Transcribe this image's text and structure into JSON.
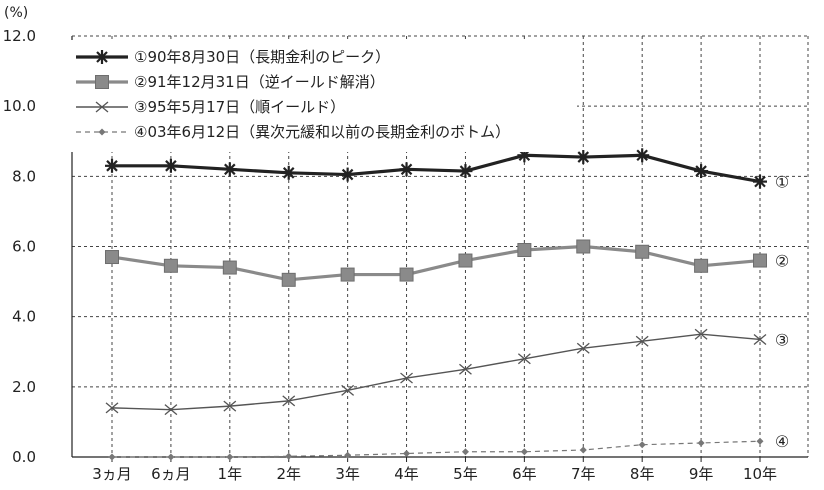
{
  "chart_data": {
    "type": "line",
    "unit_label": "(%)",
    "categories": [
      "3ヵ月",
      "6ヵ月",
      "1年",
      "2年",
      "3年",
      "4年",
      "5年",
      "6年",
      "7年",
      "8年",
      "9年",
      "10年"
    ],
    "ylim": [
      0,
      12
    ],
    "yticks": [
      "0.0",
      "2.0",
      "4.0",
      "6.0",
      "8.0",
      "10.0",
      "12.0"
    ],
    "grid": true,
    "legend_position": "top-left",
    "series": [
      {
        "name": "①90年8月30日（長期金利のピーク）",
        "end_label": "①",
        "color": "#222222",
        "marker": "star",
        "values": [
          8.3,
          8.3,
          8.2,
          8.1,
          8.05,
          8.2,
          8.15,
          8.6,
          8.55,
          8.6,
          8.15,
          7.85
        ]
      },
      {
        "name": "②91年12月31日（逆イールド解消）",
        "end_label": "②",
        "color": "#8a8a8a",
        "marker": "square",
        "values": [
          5.7,
          5.45,
          5.4,
          5.05,
          5.2,
          5.2,
          5.6,
          5.9,
          6.0,
          5.85,
          5.45,
          5.6
        ]
      },
      {
        "name": "③95年5月17日（順イールド）",
        "end_label": "③",
        "color": "#555555",
        "marker": "x",
        "values": [
          1.4,
          1.35,
          1.45,
          1.6,
          1.9,
          2.25,
          2.5,
          2.8,
          3.1,
          3.3,
          3.5,
          3.35
        ]
      },
      {
        "name": "④03年6月12日（異次元緩和以前の長期金利のボトム）",
        "end_label": "④",
        "color": "#777777",
        "marker": "diamond",
        "values": [
          0.0,
          0.0,
          0.0,
          0.02,
          0.05,
          0.1,
          0.15,
          0.15,
          0.2,
          0.35,
          0.4,
          0.45
        ]
      }
    ]
  }
}
